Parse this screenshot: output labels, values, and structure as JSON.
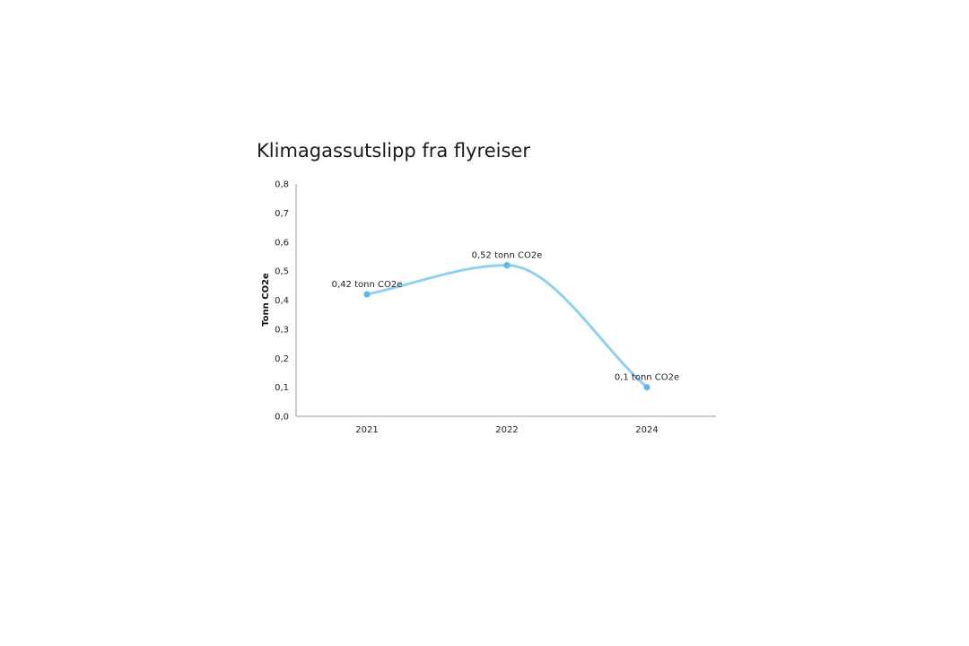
{
  "chart_data": {
    "type": "line",
    "title": "Klimagassutslipp fra flyreiser",
    "xlabel": "",
    "ylabel": "Tonn CO2e",
    "categories": [
      "2021",
      "2022",
      "2024"
    ],
    "series": [
      {
        "values": [
          0.42,
          0.52,
          0.1
        ],
        "data_labels": [
          "0,42 tonn CO2e",
          "0,52 tonn CO2e",
          "0,1 tonn CO2e"
        ]
      }
    ],
    "ylim": [
      0,
      0.8
    ],
    "y_ticks": [
      "0,0",
      "0,1",
      "0,2",
      "0,3",
      "0,4",
      "0,5",
      "0,6",
      "0,7",
      "0,8"
    ],
    "grid": false,
    "smooth": true,
    "line_color": "#8fd0ee",
    "marker_color": "#5fb8e8",
    "axis_color": "#9a9a9a"
  }
}
